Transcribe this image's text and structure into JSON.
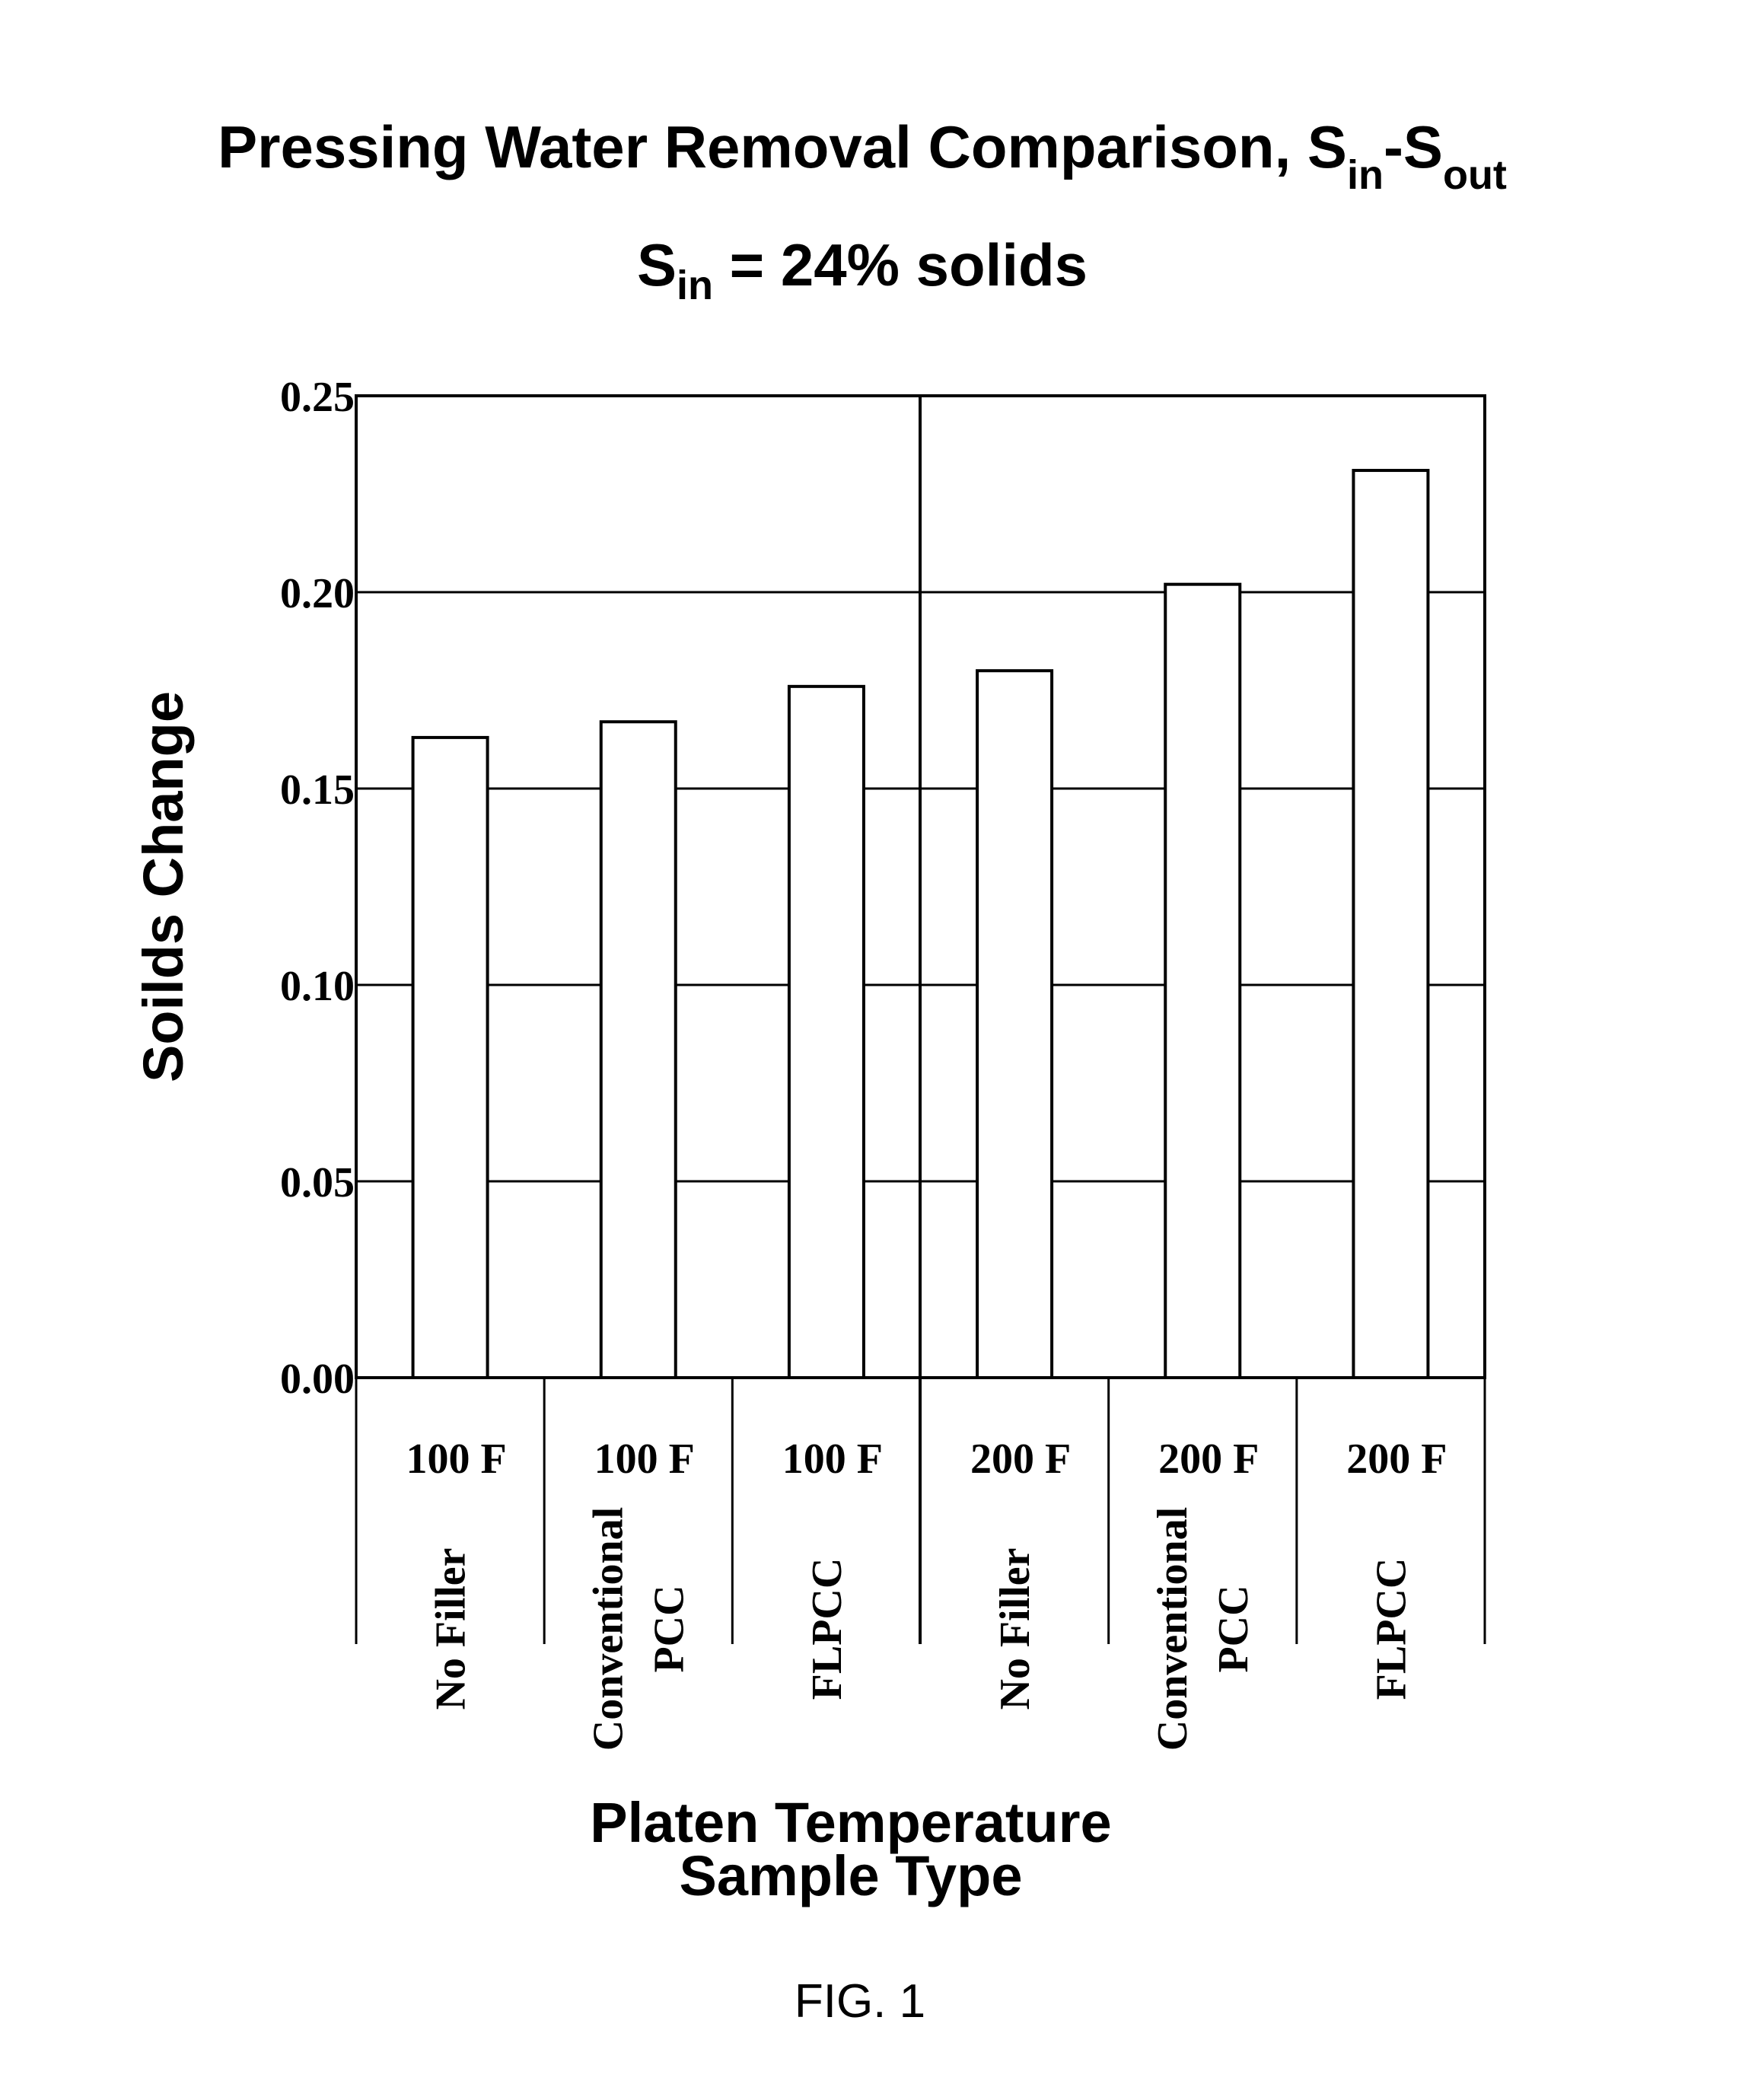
{
  "chart_data": {
    "type": "bar",
    "title": {
      "main": "Pressing Water Removal Comparison, S",
      "sub_in": "in",
      "dash": "-S",
      "sub_out": "out"
    },
    "subtitle": {
      "s": "S",
      "sub_in": "in",
      "rest": " = 24% solids"
    },
    "ylabel": "Soilds Change",
    "xlabel_line1": "Platen Temperature",
    "xlabel_line2": "Sample Type",
    "ylim": [
      0,
      0.25
    ],
    "yticks": [
      "0.00",
      "0.05",
      "0.10",
      "0.15",
      "0.20",
      "0.25"
    ],
    "grid": true,
    "categories": [
      {
        "temperature": "100 F",
        "sample_lines": [
          "No Filler"
        ]
      },
      {
        "temperature": "100 F",
        "sample_lines": [
          "Conventional",
          "PCC"
        ]
      },
      {
        "temperature": "100 F",
        "sample_lines": [
          "FLPCC"
        ]
      },
      {
        "temperature": "200 F",
        "sample_lines": [
          "No Filler"
        ]
      },
      {
        "temperature": "200 F",
        "sample_lines": [
          "Conventional",
          "PCC"
        ]
      },
      {
        "temperature": "200 F",
        "sample_lines": [
          "FLPCC"
        ]
      }
    ],
    "values": [
      0.163,
      0.167,
      0.176,
      0.18,
      0.202,
      0.231
    ]
  },
  "figure_label": "FIG. 1"
}
